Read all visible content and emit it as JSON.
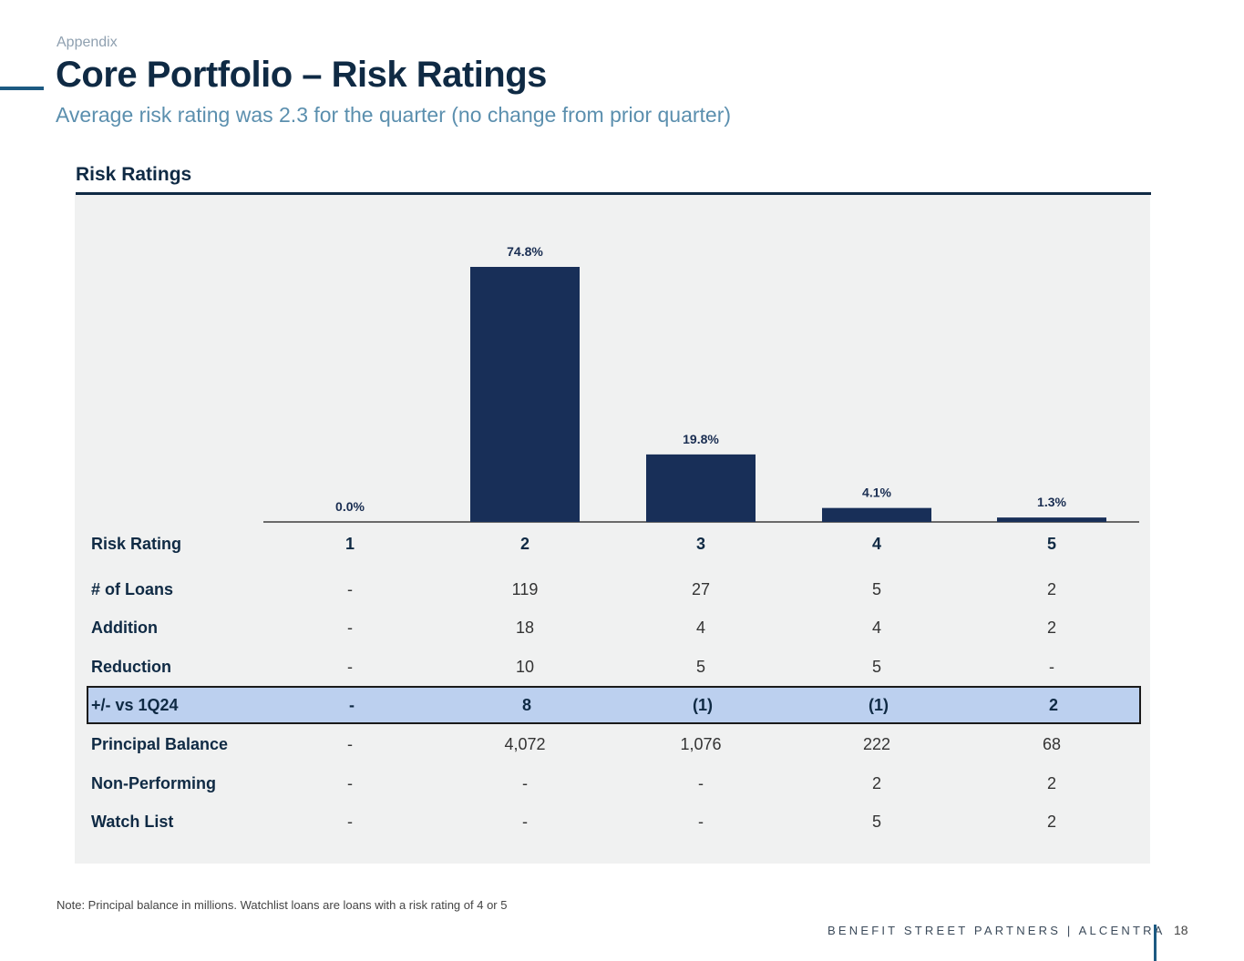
{
  "header": {
    "eyebrow": "Appendix",
    "title": "Core Portfolio – Risk Ratings",
    "subtitle": "Average risk rating was 2.3 for the quarter (no change from prior quarter)"
  },
  "section": {
    "title": "Risk Ratings"
  },
  "chart_data": {
    "type": "bar",
    "categories": [
      "1",
      "2",
      "3",
      "4",
      "5"
    ],
    "values": [
      0.0,
      74.8,
      19.8,
      4.1,
      1.3
    ],
    "labels": [
      "0.0%",
      "74.8%",
      "19.8%",
      "4.1%",
      "1.3%"
    ],
    "title": "",
    "xlabel": "",
    "ylabel": "",
    "ylim": [
      0,
      74.8
    ],
    "bar_color": "#182f58",
    "grid": false
  },
  "table": {
    "header": {
      "label": "Risk Rating",
      "values": [
        "1",
        "2",
        "3",
        "4",
        "5"
      ]
    },
    "rows": [
      {
        "label": "# of Loans",
        "values": [
          "-",
          "119",
          "27",
          "5",
          "2"
        ]
      },
      {
        "label": "Addition",
        "values": [
          "-",
          "18",
          "4",
          "4",
          "2"
        ]
      },
      {
        "label": "Reduction",
        "values": [
          "-",
          "10",
          "5",
          "5",
          "-"
        ]
      },
      {
        "label": "+/- vs 1Q24",
        "values": [
          "-",
          "8",
          "(1)",
          "(1)",
          "2"
        ],
        "highlight": true
      },
      {
        "label": "Principal Balance",
        "values": [
          "-",
          "4,072",
          "1,076",
          "222",
          "68"
        ]
      },
      {
        "label": "Non-Performing",
        "values": [
          "-",
          "-",
          "-",
          "2",
          "2"
        ]
      },
      {
        "label": "Watch List",
        "values": [
          "-",
          "-",
          "-",
          "5",
          "2"
        ]
      }
    ]
  },
  "footer": {
    "note": "Note: Principal balance in millions. Watchlist loans are loans with a risk rating of 4 or 5",
    "brand": "BENEFIT STREET PARTNERS | ALCENTRA",
    "page_number": "18"
  },
  "colors": {
    "highlight_row": "#bcd0ef",
    "accent": "#1d5a82",
    "navy": "#0f2a44"
  }
}
